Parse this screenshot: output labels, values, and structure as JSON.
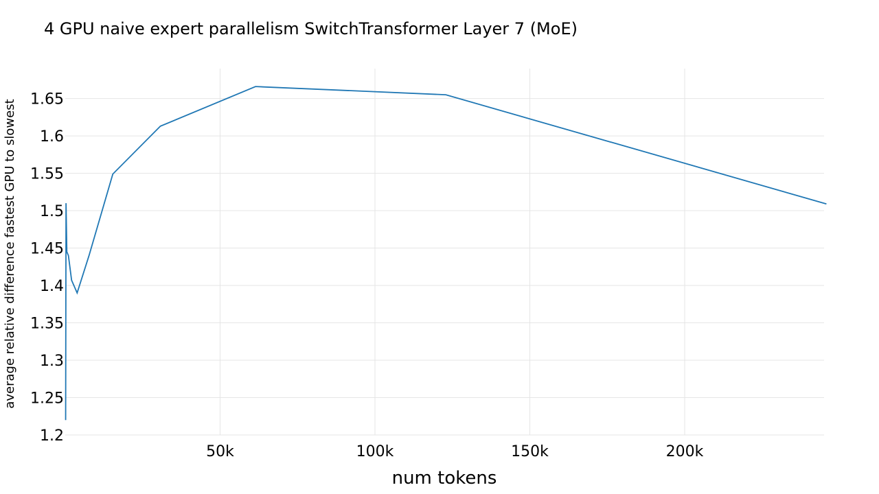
{
  "chart_data": {
    "type": "line",
    "title": "4 GPU naive expert parallelism SwitchTransformer Layer 7 (MoE)",
    "xlabel": "num tokens",
    "ylabel": "average relative difference fastest GPU to slowest",
    "xlim": [
      0,
      245000
    ],
    "ylim": [
      1.2,
      1.69
    ],
    "x_ticks": [
      50000,
      100000,
      150000,
      200000
    ],
    "x_tick_labels": [
      "50k",
      "100k",
      "150k",
      "200k"
    ],
    "y_ticks": [
      1.2,
      1.25,
      1.3,
      1.35,
      1.4,
      1.45,
      1.5,
      1.55,
      1.6,
      1.65
    ],
    "y_tick_labels": [
      "1.2",
      "1.25",
      "1.3",
      "1.35",
      "1.4",
      "1.45",
      "1.5",
      "1.55",
      "1.6",
      "1.65"
    ],
    "grid": true,
    "series": [
      {
        "color": "#1f77b4",
        "x": [
          128,
          256,
          512,
          1024,
          2048,
          3840,
          7680,
          15360,
          30720,
          61440,
          122880,
          245760
        ],
        "y": [
          1.22,
          1.51,
          1.445,
          1.44,
          1.407,
          1.39,
          1.44,
          1.549,
          1.613,
          1.666,
          1.655,
          1.509
        ]
      }
    ]
  }
}
